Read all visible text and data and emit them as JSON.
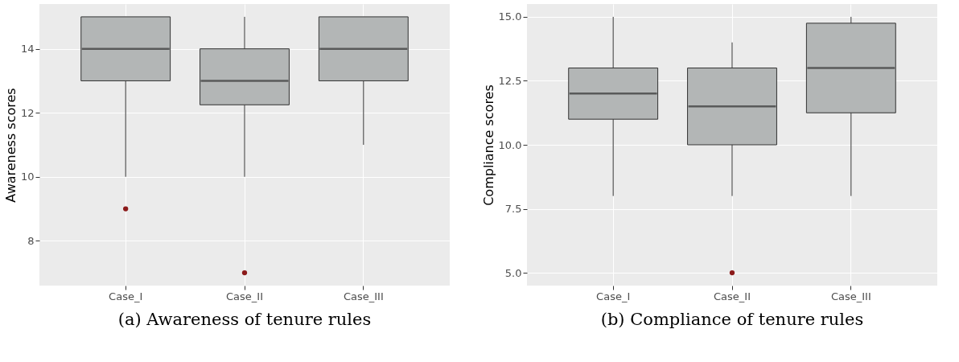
{
  "chart_data": [
    {
      "type": "box",
      "title": "(a) Awareness of tenure rules",
      "ylabel": "Awareness scores",
      "categories": [
        "Case_I",
        "Case_II",
        "Case_III"
      ],
      "ylim": [
        6.6,
        15.4
      ],
      "yticks": [
        8,
        10,
        12,
        14
      ],
      "grid": true,
      "series": [
        {
          "color": "#b3b6b6",
          "boxes": [
            {
              "low": 10,
              "q1": 13,
              "median": 14,
              "q3": 15,
              "high": 15,
              "outliers": [
                9
              ]
            },
            {
              "low": 10,
              "q1": 12.25,
              "median": 13,
              "q3": 14,
              "high": 15,
              "outliers": [
                7
              ]
            },
            {
              "low": 11,
              "q1": 13,
              "median": 14,
              "q3": 15,
              "high": 15
            }
          ]
        }
      ]
    },
    {
      "type": "box",
      "title": "(b) Compliance of tenure rules",
      "ylabel": "Compliance scores",
      "categories": [
        "Case_I",
        "Case_II",
        "Case_III"
      ],
      "ylim": [
        4.5,
        15.5
      ],
      "yticks": [
        {
          "value": 5,
          "label": "5.0"
        },
        7.5,
        {
          "value": 10,
          "label": "10.0"
        },
        12.5,
        {
          "value": 15,
          "label": "15.0"
        }
      ],
      "grid": true,
      "series": [
        {
          "color": "#b3b6b6",
          "boxes": [
            {
              "low": 8,
              "q1": 11,
              "median": 12,
              "q3": 13,
              "high": 15
            },
            {
              "low": 8,
              "q1": 10,
              "median": 11.5,
              "q3": 13,
              "high": 14,
              "outliers": [
                5
              ]
            },
            {
              "low": 8,
              "q1": 11.25,
              "median": 13,
              "q3": 14.75,
              "high": 15
            }
          ]
        }
      ]
    }
  ]
}
